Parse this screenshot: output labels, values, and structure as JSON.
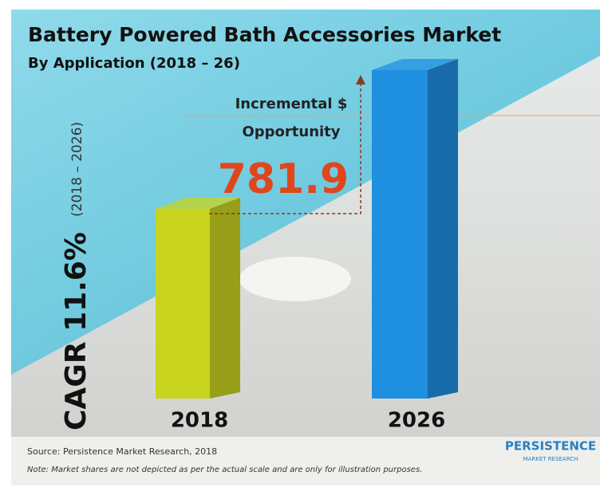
{
  "chart_data": {
    "type": "bar",
    "title": "Battery Powered Bath Accessories Market",
    "subtitle": "By Application (2018 – 26)",
    "cagr": "CAGR 11.6%",
    "cagr_period": "(2018 – 2026)",
    "categories": [
      "2018",
      "2026"
    ],
    "colors": [
      "#c8d41e",
      "#1f8fe0"
    ],
    "annotation": {
      "label_lines": [
        "Incremental $",
        "Opportunity"
      ],
      "value": 781.9,
      "color": "#e0461c"
    },
    "source": "Source: Persistence Market Research, 2018",
    "note": "Note: Market shares are not depicted as per the actual scale and are only for illustration purposes.",
    "logo": {
      "name": "PERSISTENCE",
      "tagline": "MARKET RESEARCH"
    }
  }
}
